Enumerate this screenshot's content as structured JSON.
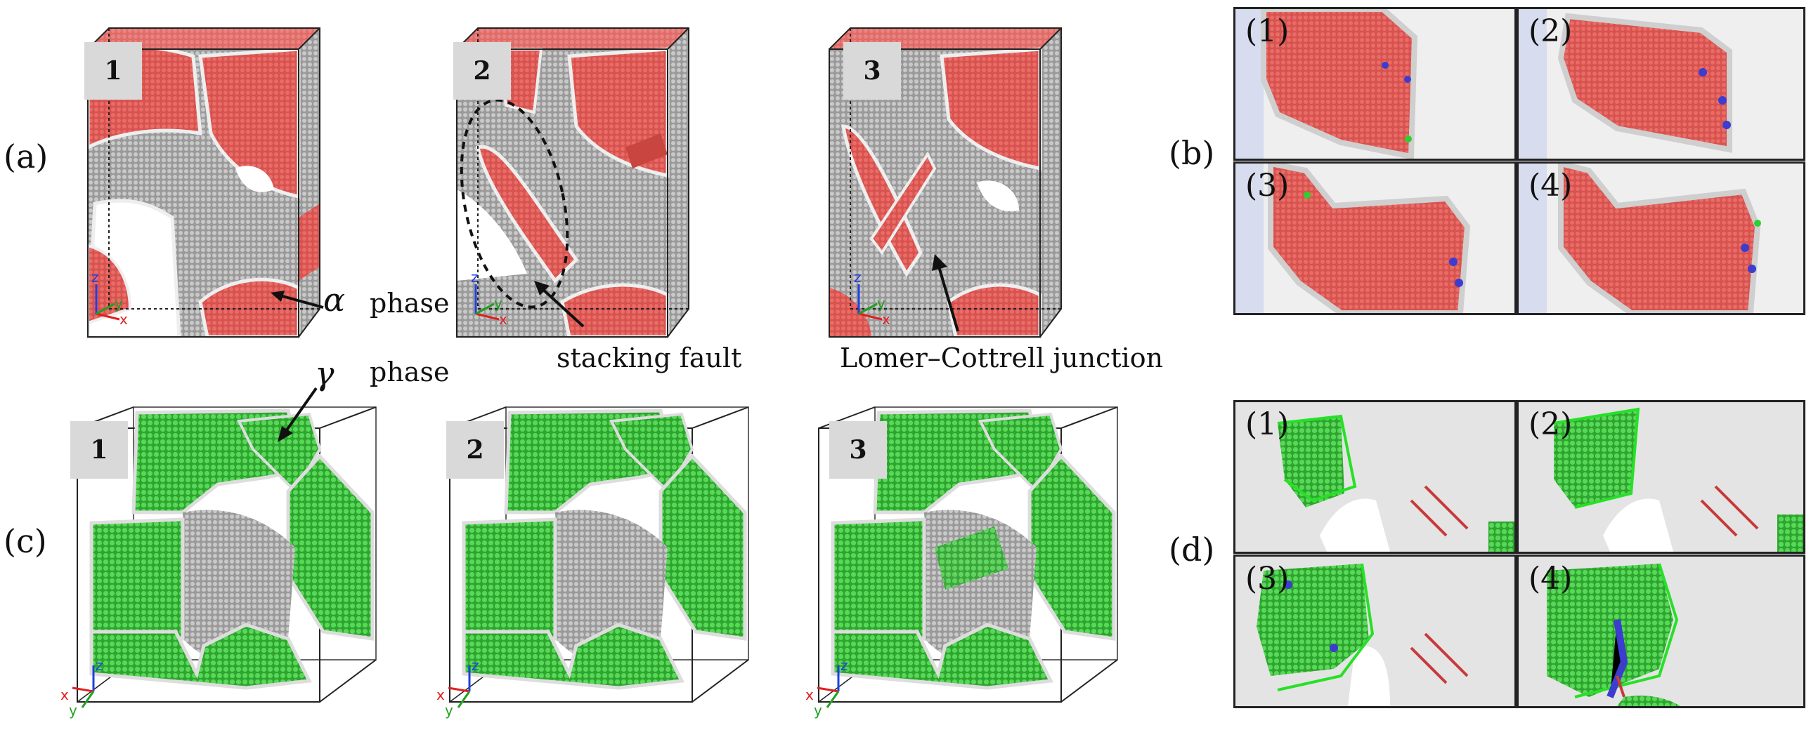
{
  "panels": {
    "a": "(a)",
    "b": "(b)",
    "c": "(c)",
    "d": "(d)"
  },
  "row_top": {
    "badges": [
      "1",
      "2",
      "3"
    ],
    "axis_labels": {
      "z": "z",
      "y": "y",
      "x": "x"
    },
    "alpha_label": {
      "symbol": "α",
      "word": "phase"
    },
    "stacking_fault": "stacking fault",
    "lc_junction": "Lomer–Cottrell junction"
  },
  "row_bottom": {
    "badges": [
      "1",
      "2",
      "3"
    ],
    "axis_labels": {
      "z": "z",
      "y": "y",
      "x": "x"
    },
    "gamma_label": {
      "symbol": "γ",
      "word": "phase"
    }
  },
  "insets_b": [
    "(1)",
    "(2)",
    "(3)",
    "(4)"
  ],
  "insets_d": [
    "(1)",
    "(2)",
    "(3)",
    "(4)"
  ],
  "colors": {
    "alpha_red": "#d9534f",
    "gamma_green": "#3cc43c",
    "boundary_gray": "#c8c8c8",
    "box_line": "#222222",
    "badge_bg": "#d9d9d9",
    "axis_x": "#e02020",
    "axis_y": "#20a020",
    "axis_z": "#2040e0"
  }
}
